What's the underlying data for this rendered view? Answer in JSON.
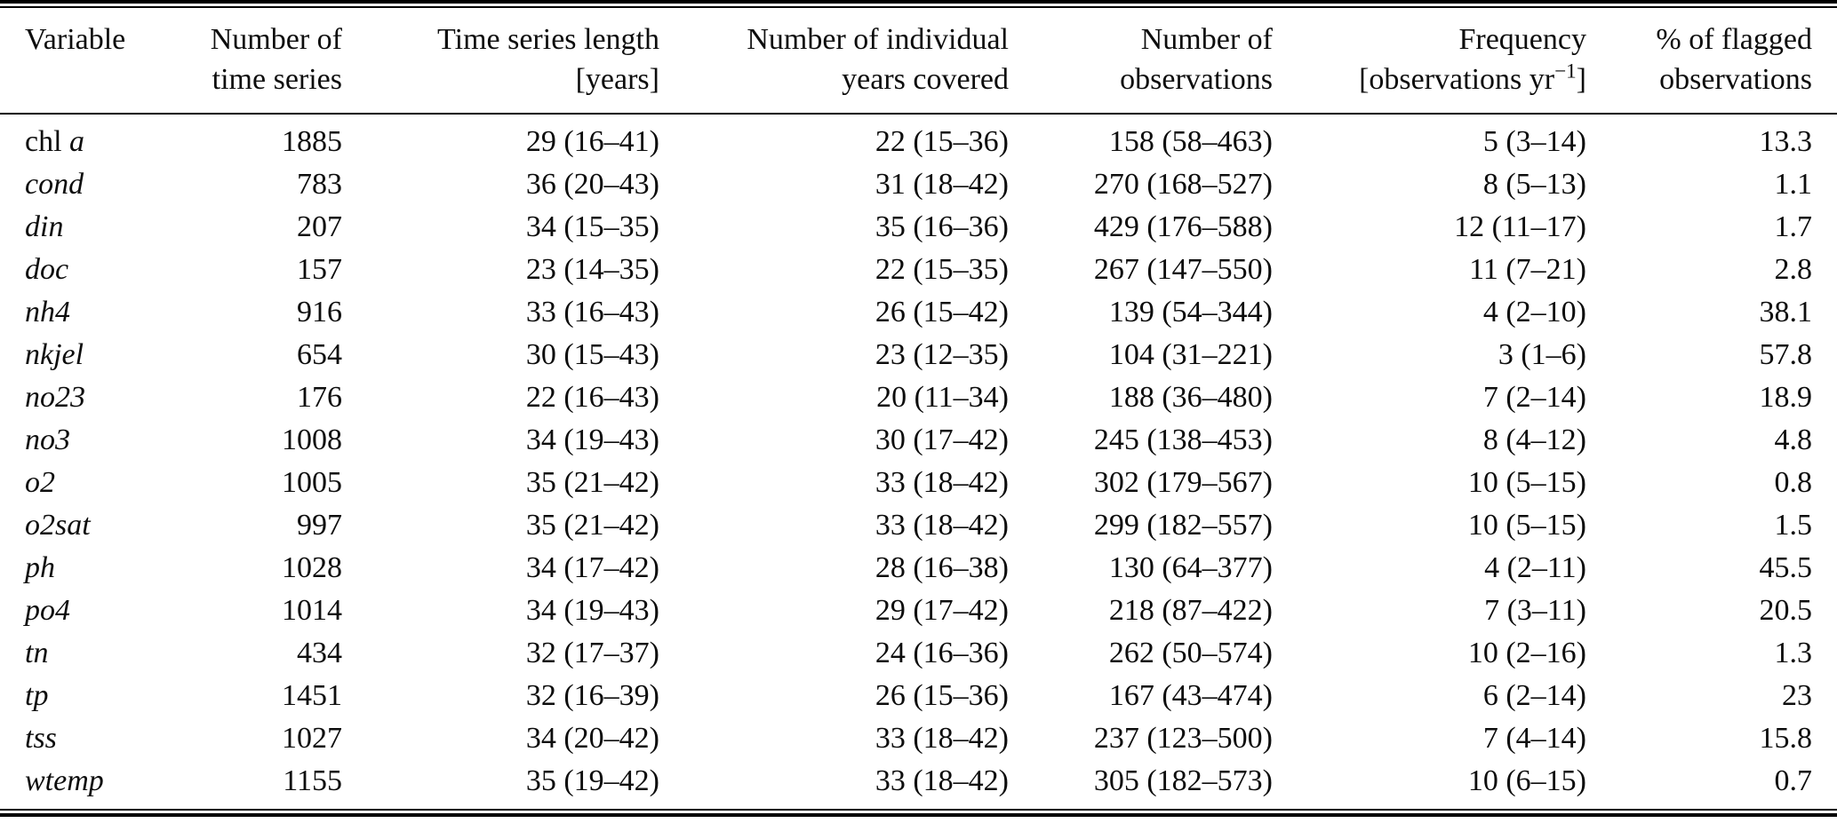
{
  "table": {
    "header": {
      "variable": "Variable",
      "num_series_l1": "Number of",
      "num_series_l2": "time series",
      "length_l1": "Time series length",
      "length_l2": "[years]",
      "years_l1": "Number of individual",
      "years_l2": "years covered",
      "obs_l1": "Number of",
      "obs_l2": "observations",
      "freq_l1": "Frequency",
      "freq_l2_pre": "[observations yr",
      "freq_l2_sup": "−1",
      "freq_l2_post": "]",
      "flagged_l1": "% of flagged",
      "flagged_l2": "observations"
    },
    "rows": [
      {
        "variable_prefix": "chl ",
        "variable": "a",
        "num_time_series": "1885",
        "length_years": "29 (16–41)",
        "years_covered": "22 (15–36)",
        "num_observations": "158 (58–463)",
        "frequency": "5 (3–14)",
        "pct_flagged": "13.3"
      },
      {
        "variable_prefix": "",
        "variable": "cond",
        "num_time_series": "783",
        "length_years": "36 (20–43)",
        "years_covered": "31 (18–42)",
        "num_observations": "270 (168–527)",
        "frequency": "8 (5–13)",
        "pct_flagged": "1.1"
      },
      {
        "variable_prefix": "",
        "variable": "din",
        "num_time_series": "207",
        "length_years": "34 (15–35)",
        "years_covered": "35 (16–36)",
        "num_observations": "429 (176–588)",
        "frequency": "12 (11–17)",
        "pct_flagged": "1.7"
      },
      {
        "variable_prefix": "",
        "variable": "doc",
        "num_time_series": "157",
        "length_years": "23 (14–35)",
        "years_covered": "22 (15–35)",
        "num_observations": "267 (147–550)",
        "frequency": "11 (7–21)",
        "pct_flagged": "2.8"
      },
      {
        "variable_prefix": "",
        "variable": "nh4",
        "num_time_series": "916",
        "length_years": "33 (16–43)",
        "years_covered": "26 (15–42)",
        "num_observations": "139 (54–344)",
        "frequency": "4 (2–10)",
        "pct_flagged": "38.1"
      },
      {
        "variable_prefix": "",
        "variable": "nkjel",
        "num_time_series": "654",
        "length_years": "30 (15–43)",
        "years_covered": "23 (12–35)",
        "num_observations": "104 (31–221)",
        "frequency": "3 (1–6)",
        "pct_flagged": "57.8"
      },
      {
        "variable_prefix": "",
        "variable": "no23",
        "num_time_series": "176",
        "length_years": "22 (16–43)",
        "years_covered": "20 (11–34)",
        "num_observations": "188 (36–480)",
        "frequency": "7 (2–14)",
        "pct_flagged": "18.9"
      },
      {
        "variable_prefix": "",
        "variable": "no3",
        "num_time_series": "1008",
        "length_years": "34 (19–43)",
        "years_covered": "30 (17–42)",
        "num_observations": "245 (138–453)",
        "frequency": "8 (4–12)",
        "pct_flagged": "4.8"
      },
      {
        "variable_prefix": "",
        "variable": "o2",
        "num_time_series": "1005",
        "length_years": "35 (21–42)",
        "years_covered": "33 (18–42)",
        "num_observations": "302 (179–567)",
        "frequency": "10 (5–15)",
        "pct_flagged": "0.8"
      },
      {
        "variable_prefix": "",
        "variable": "o2sat",
        "num_time_series": "997",
        "length_years": "35 (21–42)",
        "years_covered": "33 (18–42)",
        "num_observations": "299 (182–557)",
        "frequency": "10 (5–15)",
        "pct_flagged": "1.5"
      },
      {
        "variable_prefix": "",
        "variable": "ph",
        "num_time_series": "1028",
        "length_years": "34 (17–42)",
        "years_covered": "28 (16–38)",
        "num_observations": "130 (64–377)",
        "frequency": "4 (2–11)",
        "pct_flagged": "45.5"
      },
      {
        "variable_prefix": "",
        "variable": "po4",
        "num_time_series": "1014",
        "length_years": "34 (19–43)",
        "years_covered": "29 (17–42)",
        "num_observations": "218 (87–422)",
        "frequency": "7 (3–11)",
        "pct_flagged": "20.5"
      },
      {
        "variable_prefix": "",
        "variable": "tn",
        "num_time_series": "434",
        "length_years": "32 (17–37)",
        "years_covered": "24 (16–36)",
        "num_observations": "262 (50–574)",
        "frequency": "10 (2–16)",
        "pct_flagged": "1.3"
      },
      {
        "variable_prefix": "",
        "variable": "tp",
        "num_time_series": "1451",
        "length_years": "32 (16–39)",
        "years_covered": "26 (15–36)",
        "num_observations": "167 (43–474)",
        "frequency": "6 (2–14)",
        "pct_flagged": "23"
      },
      {
        "variable_prefix": "",
        "variable": "tss",
        "num_time_series": "1027",
        "length_years": "34 (20–42)",
        "years_covered": "33 (18–42)",
        "num_observations": "237 (123–500)",
        "frequency": "7 (4–14)",
        "pct_flagged": "15.8"
      },
      {
        "variable_prefix": "",
        "variable": "wtemp",
        "num_time_series": "1155",
        "length_years": "35 (19–42)",
        "years_covered": "33 (18–42)",
        "num_observations": "305 (182–573)",
        "frequency": "10 (6–15)",
        "pct_flagged": "0.7"
      }
    ]
  }
}
